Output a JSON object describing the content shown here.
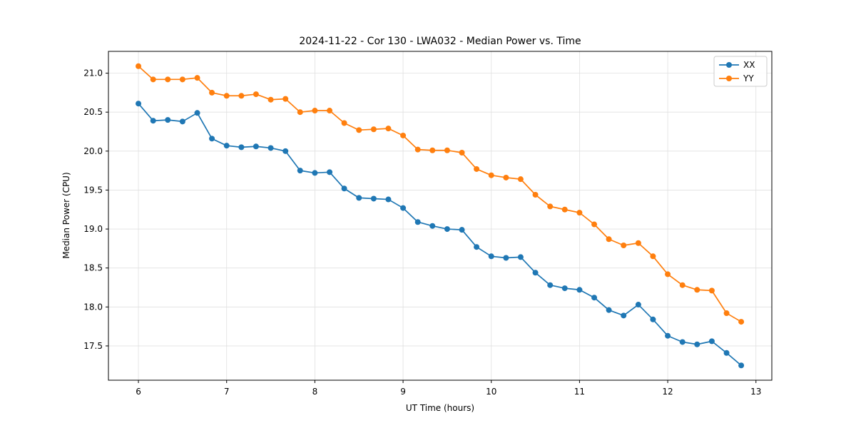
{
  "chart_data": {
    "type": "line",
    "title": "2024-11-22 - Cor 130 - LWA032 - Median Power vs. Time",
    "xlabel": "UT Time (hours)",
    "ylabel": "Median Power (CPU)",
    "xlim": [
      5.66,
      13.18
    ],
    "ylim": [
      17.06,
      21.28
    ],
    "xticks": [
      6,
      7,
      8,
      9,
      10,
      11,
      12,
      13
    ],
    "xtick_labels": [
      "6",
      "7",
      "8",
      "9",
      "10",
      "11",
      "12",
      "13"
    ],
    "yticks": [
      17.5,
      18.0,
      18.5,
      19.0,
      19.5,
      20.0,
      20.5,
      21.0
    ],
    "ytick_labels": [
      "17.5",
      "18.0",
      "18.5",
      "19.0",
      "19.5",
      "20.0",
      "20.5",
      "21.0"
    ],
    "grid": true,
    "legend_position": "upper right",
    "x": [
      6.0,
      6.167,
      6.333,
      6.5,
      6.667,
      6.833,
      7.0,
      7.167,
      7.333,
      7.5,
      7.667,
      7.833,
      8.0,
      8.167,
      8.333,
      8.5,
      8.667,
      8.833,
      9.0,
      9.167,
      9.333,
      9.5,
      9.667,
      9.833,
      10.0,
      10.167,
      10.333,
      10.5,
      10.667,
      10.833,
      11.0,
      11.167,
      11.333,
      11.5,
      11.667,
      11.833,
      12.0,
      12.167,
      12.333,
      12.5,
      12.667,
      12.833
    ],
    "series": [
      {
        "name": "XX",
        "color": "#1f77b4",
        "values": [
          20.61,
          20.39,
          20.4,
          20.38,
          20.49,
          20.16,
          20.07,
          20.05,
          20.06,
          20.04,
          20.0,
          19.75,
          19.72,
          19.73,
          19.52,
          19.4,
          19.39,
          19.38,
          19.27,
          19.09,
          19.04,
          19.0,
          18.99,
          18.77,
          18.65,
          18.63,
          18.64,
          18.44,
          18.28,
          18.24,
          18.22,
          18.12,
          17.96,
          17.89,
          18.03,
          17.84,
          17.63,
          17.55,
          17.52,
          17.56,
          17.41,
          17.25
        ]
      },
      {
        "name": "YY",
        "color": "#ff7f0e",
        "values": [
          21.09,
          20.92,
          20.92,
          20.92,
          20.94,
          20.75,
          20.71,
          20.71,
          20.73,
          20.66,
          20.67,
          20.5,
          20.52,
          20.52,
          20.36,
          20.27,
          20.28,
          20.29,
          20.2,
          20.02,
          20.01,
          20.01,
          19.98,
          19.77,
          19.69,
          19.66,
          19.64,
          19.44,
          19.29,
          19.25,
          19.21,
          19.06,
          18.87,
          18.79,
          18.82,
          18.65,
          18.42,
          18.28,
          18.22,
          18.21,
          17.92,
          17.81
        ]
      }
    ],
    "style": {
      "grid_color": "#e0e0e0",
      "axes_edge_color": "#000000",
      "legend_border_color": "#cccccc",
      "background": "#ffffff"
    }
  }
}
